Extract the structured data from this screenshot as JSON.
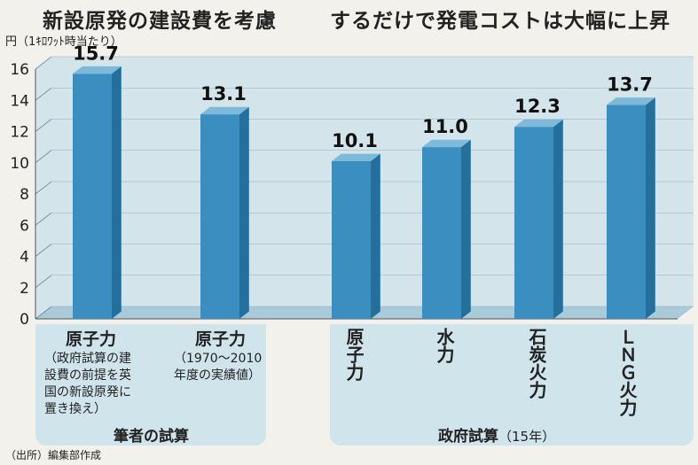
{
  "titles": {
    "left": "新設原発の建設費を考慮",
    "right": "するだけで発電コストは大幅に上昇"
  },
  "unit": "円（1ｷﾛﾜｯﾄ時当たり）",
  "source": "（出所）編集部作成",
  "groups": {
    "left": "筆者の試算",
    "right_main": "政府試算",
    "right_year": "（15年）"
  },
  "labels": {
    "b1_name": "原子力",
    "b1_note": [
      "（政府試算の建",
      "設費の前提を英",
      "国の新設原発に",
      "置き換え）"
    ],
    "b2_name": "原子力",
    "b2_note": [
      "（1970～2010",
      "年度の実績値）"
    ],
    "b3_name": "原子力",
    "b4_name": "水力",
    "b5_name": "石炭火力",
    "b6_name": "ＬＮＧ火力"
  },
  "chart_data": {
    "type": "bar",
    "categories": [
      "原子力（政府試算の建設費の前提を英国の新設原発に置き換え）",
      "原子力（1970～2010年度の実績値）",
      "原子力",
      "水力",
      "石炭火力",
      "ＬＮＧ火力"
    ],
    "values": [
      15.7,
      13.1,
      10.1,
      11.0,
      12.3,
      13.7
    ],
    "value_labels": [
      "15.7",
      "13.1",
      "10.1",
      "11.0",
      "12.3",
      "13.7"
    ],
    "ylim": [
      0,
      16
    ],
    "yticks": [
      "0",
      "2",
      "4",
      "6",
      "8",
      "10",
      "12",
      "14",
      "16"
    ],
    "ylabel": "円（1ｷﾛﾜｯﾄ時当たり）",
    "colors": {
      "bar": "#3b8fc0",
      "bar_side": "#256f9c",
      "bar_top": "#7fb9d9",
      "panel": "#cfe3eb"
    }
  }
}
